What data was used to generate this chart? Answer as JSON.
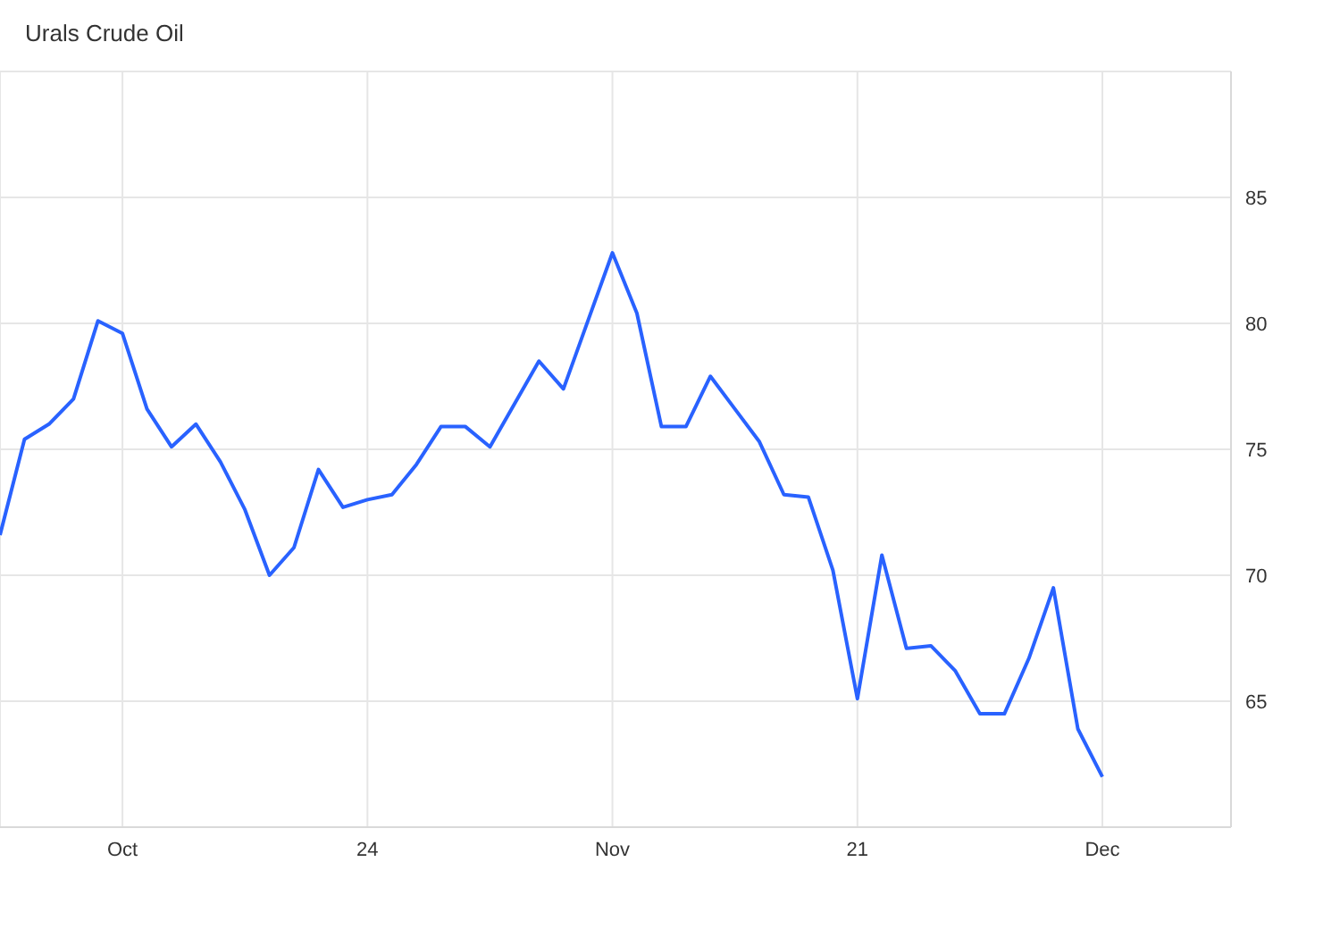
{
  "chart_data": {
    "type": "line",
    "title": "Urals Crude Oil",
    "categories": [
      null,
      null,
      null,
      null,
      null,
      "Oct",
      null,
      null,
      null,
      null,
      null,
      null,
      null,
      null,
      null,
      "24",
      null,
      null,
      null,
      null,
      null,
      null,
      null,
      null,
      null,
      "Nov",
      null,
      null,
      null,
      null,
      null,
      null,
      null,
      null,
      null,
      "21",
      null,
      null,
      null,
      null,
      null,
      null,
      null,
      null,
      null,
      "Dec"
    ],
    "series": [
      {
        "color": "#2962ff",
        "values": [
          71.6,
          75.4,
          76.0,
          77.0,
          80.1,
          79.6,
          76.6,
          75.1,
          76.0,
          74.5,
          72.6,
          70.0,
          71.1,
          74.2,
          72.7,
          73.0,
          73.2,
          74.4,
          75.9,
          75.9,
          75.1,
          76.8,
          78.5,
          77.4,
          80.1,
          82.8,
          80.4,
          75.9,
          75.9,
          77.9,
          76.6,
          75.3,
          73.2,
          73.1,
          70.2,
          65.1,
          70.8,
          67.1,
          67.2,
          66.2,
          64.5,
          64.5,
          66.7,
          69.5,
          63.9,
          62.0
        ]
      }
    ],
    "ylim": [
      60,
      90
    ],
    "yticks": [
      65,
      70,
      75,
      80,
      85
    ],
    "grid": true,
    "marker": "none",
    "line_style": "solid"
  }
}
